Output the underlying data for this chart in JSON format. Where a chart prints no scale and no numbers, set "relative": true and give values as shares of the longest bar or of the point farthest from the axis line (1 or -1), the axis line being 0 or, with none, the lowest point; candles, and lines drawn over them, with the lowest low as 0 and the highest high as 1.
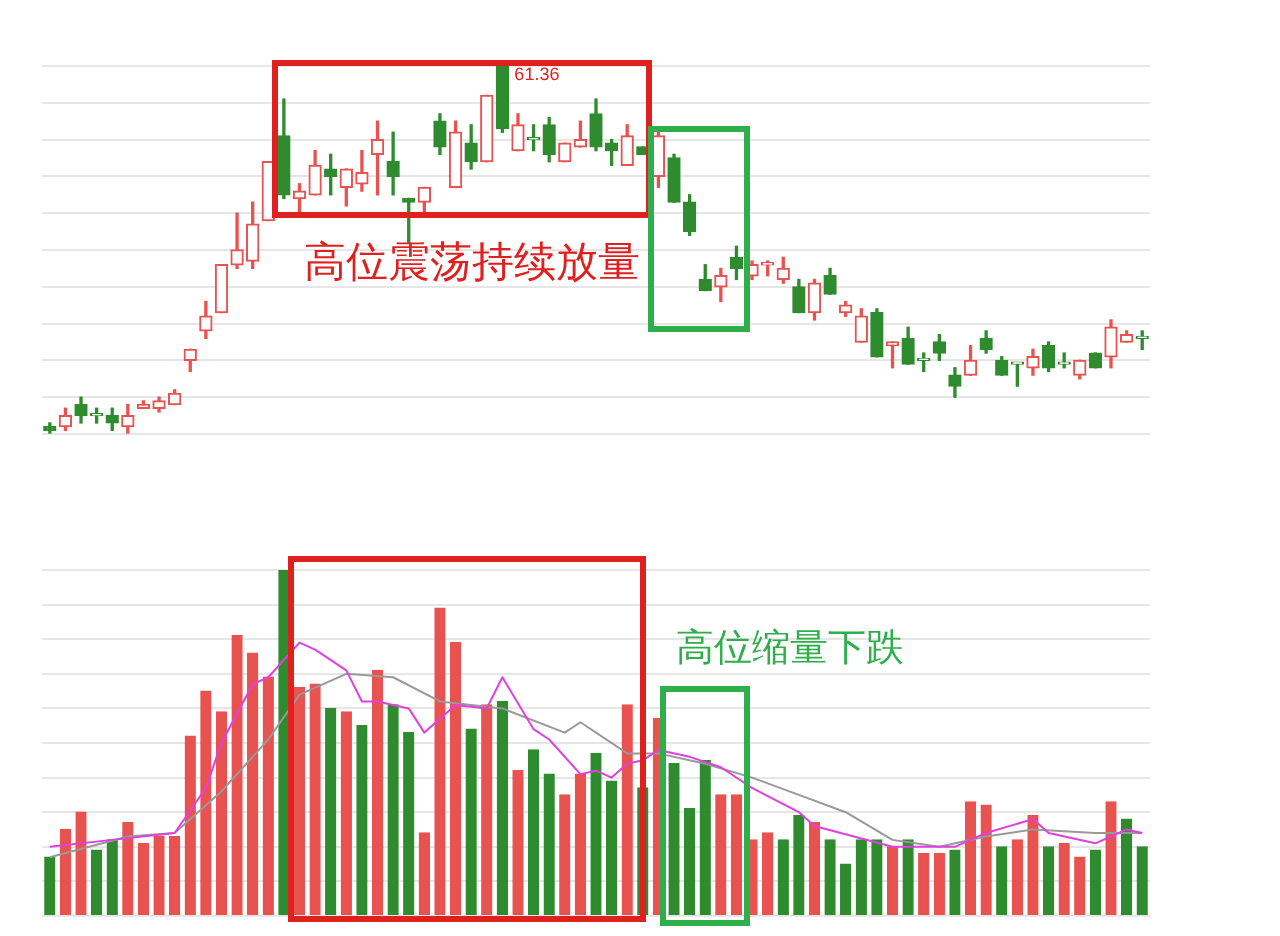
{
  "chart_data": [
    {
      "type": "candlestick",
      "relative": true,
      "grid": true,
      "categories": [
        null,
        null,
        null,
        null,
        null,
        null,
        null,
        null,
        null,
        null,
        null,
        null,
        null,
        null,
        null,
        null,
        null,
        null,
        null,
        null,
        null,
        null,
        null,
        null,
        null,
        null,
        null,
        null,
        null,
        null,
        null,
        null,
        null,
        null,
        null,
        null,
        null,
        null,
        null,
        null,
        null,
        null,
        null,
        null,
        null,
        null,
        null,
        null,
        null,
        null,
        null,
        null,
        null,
        null,
        null,
        null,
        null,
        null,
        null,
        null,
        null,
        null,
        null,
        null,
        null,
        null,
        null,
        null,
        null,
        null,
        null
      ],
      "ohlc": [
        [
          0.02,
          0.03,
          0,
          0.01
        ],
        [
          0.02,
          0.07,
          0.01,
          0.05
        ],
        [
          0.08,
          0.1,
          0.03,
          0.05
        ],
        [
          0.05,
          0.07,
          0.03,
          0.05
        ],
        [
          0.05,
          0.07,
          0.01,
          0.03
        ],
        [
          0.02,
          0.08,
          0,
          0.05
        ],
        [
          0.07,
          0.09,
          0.07,
          0.08
        ],
        [
          0.07,
          0.1,
          0.06,
          0.09
        ],
        [
          0.08,
          0.12,
          0.08,
          0.11
        ],
        [
          0.2,
          0.23,
          0.17,
          0.23
        ],
        [
          0.28,
          0.36,
          0.26,
          0.32
        ],
        [
          0.33,
          0.46,
          0.33,
          0.46
        ],
        [
          0.46,
          0.6,
          0.45,
          0.5
        ],
        [
          0.47,
          0.63,
          0.45,
          0.57
        ],
        [
          0.58,
          0.74,
          0.58,
          0.74
        ],
        [
          0.81,
          0.91,
          0.64,
          0.65
        ],
        [
          0.64,
          0.68,
          0.59,
          0.66
        ],
        [
          0.65,
          0.77,
          0.65,
          0.73
        ],
        [
          0.72,
          0.76,
          0.65,
          0.7
        ],
        [
          0.67,
          0.72,
          0.62,
          0.72
        ],
        [
          0.68,
          0.77,
          0.66,
          0.71
        ],
        [
          0.76,
          0.85,
          0.65,
          0.8
        ],
        [
          0.74,
          0.82,
          0.65,
          0.7
        ],
        [
          0.64,
          0.64,
          0.52,
          0.63
        ],
        [
          0.63,
          0.67,
          0.6,
          0.67
        ],
        [
          0.85,
          0.87,
          0.76,
          0.78
        ],
        [
          0.67,
          0.85,
          0.67,
          0.82
        ],
        [
          0.79,
          0.84,
          0.72,
          0.74
        ],
        [
          0.74,
          0.92,
          0.74,
          0.92
        ],
        [
          1,
          1,
          0.82,
          0.83
        ],
        [
          0.77,
          0.87,
          0.77,
          0.84
        ],
        [
          0.8,
          0.84,
          0.77,
          0.8
        ],
        [
          0.84,
          0.86,
          0.74,
          0.76
        ],
        [
          0.74,
          0.79,
          0.74,
          0.79
        ],
        [
          0.78,
          0.85,
          0.78,
          0.8
        ],
        [
          0.87,
          0.91,
          0.77,
          0.78
        ],
        [
          0.79,
          0.8,
          0.73,
          0.77
        ],
        [
          0.73,
          0.84,
          0.73,
          0.81
        ],
        [
          0.78,
          0.78,
          0.76,
          0.76
        ],
        [
          0.7,
          0.83,
          0.67,
          0.81
        ],
        [
          0.75,
          0.76,
          0.63,
          0.63
        ],
        [
          0.63,
          0.65,
          0.54,
          0.55
        ],
        [
          0.42,
          0.46,
          0.39,
          0.39
        ],
        [
          0.4,
          0.45,
          0.36,
          0.43
        ],
        [
          0.48,
          0.51,
          0.42,
          0.45
        ],
        [
          0.43,
          0.47,
          0.42,
          0.46
        ],
        [
          0.46,
          0.47,
          0.43,
          0.46
        ],
        [
          0.42,
          0.48,
          0.41,
          0.45
        ],
        [
          0.4,
          0.42,
          0.33,
          0.33
        ],
        [
          0.33,
          0.42,
          0.31,
          0.41
        ],
        [
          0.43,
          0.45,
          0.38,
          0.38
        ],
        [
          0.33,
          0.36,
          0.32,
          0.35
        ],
        [
          0.25,
          0.34,
          0.25,
          0.32
        ],
        [
          0.33,
          0.34,
          0.21,
          0.21
        ],
        [
          0.24,
          0.25,
          0.18,
          0.25
        ],
        [
          0.26,
          0.29,
          0.19,
          0.19
        ],
        [
          0.2,
          0.22,
          0.17,
          0.2
        ],
        [
          0.25,
          0.27,
          0.2,
          0.22
        ],
        [
          0.16,
          0.18,
          0.1,
          0.13
        ],
        [
          0.16,
          0.24,
          0.16,
          0.2
        ],
        [
          0.26,
          0.28,
          0.22,
          0.23
        ],
        [
          0.2,
          0.21,
          0.16,
          0.16
        ],
        [
          0.19,
          0.19,
          0.13,
          0.19
        ],
        [
          0.18,
          0.23,
          0.16,
          0.21
        ],
        [
          0.24,
          0.25,
          0.17,
          0.18
        ],
        [
          0.19,
          0.22,
          0.18,
          0.19
        ],
        [
          0.16,
          0.2,
          0.15,
          0.2
        ],
        [
          0.22,
          0.22,
          0.18,
          0.18
        ],
        [
          0.21,
          0.31,
          0.18,
          0.29
        ],
        [
          0.25,
          0.28,
          0.25,
          0.27
        ],
        [
          0.26,
          0.28,
          0.23,
          0.26
        ]
      ],
      "colors": [
        "#2e8b2e",
        "#e8524f",
        "#2e8b2e",
        "#2e8b2e",
        "#2e8b2e",
        "#e8524f",
        "#e8524f",
        "#e8524f",
        "#e8524f",
        "#e8524f",
        "#e8524f",
        "#e8524f",
        "#e8524f",
        "#e8524f",
        "#e8524f",
        "#2e8b2e",
        "#e8524f",
        "#e8524f",
        "#2e8b2e",
        "#e8524f",
        "#e8524f",
        "#e8524f",
        "#2e8b2e",
        "#2e8b2e",
        "#e8524f",
        "#2e8b2e",
        "#e8524f",
        "#2e8b2e",
        "#e8524f",
        "#2e8b2e",
        "#e8524f",
        "#2e8b2e",
        "#2e8b2e",
        "#e8524f",
        "#e8524f",
        "#2e8b2e",
        "#2e8b2e",
        "#e8524f",
        "#2e8b2e",
        "#e8524f",
        "#2e8b2e",
        "#2e8b2e",
        "#2e8b2e",
        "#e8524f",
        "#2e8b2e",
        "#e8524f",
        "#e8524f",
        "#e8524f",
        "#2e8b2e",
        "#e8524f",
        "#2e8b2e",
        "#e8524f",
        "#e8524f",
        "#2e8b2e",
        "#e8524f",
        "#2e8b2e",
        "#2e8b2e",
        "#2e8b2e",
        "#2e8b2e",
        "#e8524f",
        "#2e8b2e",
        "#2e8b2e",
        "#2e8b2e",
        "#e8524f",
        "#2e8b2e",
        "#2e8b2e",
        "#e8524f",
        "#2e8b2e",
        "#e8524f",
        "#e8524f",
        "#2e8b2e"
      ],
      "annotations": [
        "61.36",
        "高位震荡持续放量"
      ]
    },
    {
      "type": "bar",
      "relative": true,
      "grid": true,
      "categories": [
        null,
        null,
        null,
        null,
        null,
        null,
        null,
        null,
        null,
        null,
        null,
        null,
        null,
        null,
        null,
        null,
        null,
        null,
        null,
        null,
        null,
        null,
        null,
        null,
        null,
        null,
        null,
        null,
        null,
        null,
        null,
        null,
        null,
        null,
        null,
        null,
        null,
        null,
        null,
        null,
        null,
        null,
        null,
        null,
        null,
        null,
        null,
        null,
        null,
        null,
        null,
        null,
        null,
        null,
        null,
        null,
        null,
        null,
        null,
        null,
        null,
        null,
        null,
        null,
        null,
        null,
        null,
        null,
        null,
        null,
        null
      ],
      "series": [
        {
          "type": "bar",
          "colors": [
            "#2e8b2e",
            "#e8524f",
            "#e8524f",
            "#2e8b2e",
            "#2e8b2e",
            "#e8524f",
            "#e8524f",
            "#e8524f",
            "#e8524f",
            "#e8524f",
            "#e8524f",
            "#e8524f",
            "#e8524f",
            "#e8524f",
            "#e8524f",
            "#2e8b2e",
            "#e8524f",
            "#e8524f",
            "#2e8b2e",
            "#e8524f",
            "#2e8b2e",
            "#e8524f",
            "#2e8b2e",
            "#2e8b2e",
            "#e8524f",
            "#e8524f",
            "#e8524f",
            "#2e8b2e",
            "#e8524f",
            "#2e8b2e",
            "#e8524f",
            "#2e8b2e",
            "#2e8b2e",
            "#e8524f",
            "#e8524f",
            "#2e8b2e",
            "#2e8b2e",
            "#e8524f",
            "#2e8b2e",
            "#e8524f",
            "#2e8b2e",
            "#2e8b2e",
            "#2e8b2e",
            "#e8524f",
            "#e8524f",
            "#e8524f",
            "#e8524f",
            "#2e8b2e",
            "#2e8b2e",
            "#e8524f",
            "#2e8b2e",
            "#2e8b2e",
            "#2e8b2e",
            "#2e8b2e",
            "#e8524f",
            "#2e8b2e",
            "#e8524f",
            "#e8524f",
            "#2e8b2e",
            "#e8524f",
            "#e8524f",
            "#2e8b2e",
            "#e8524f",
            "#e8524f",
            "#2e8b2e",
            "#e8524f",
            "#e8524f",
            "#2e8b2e",
            "#e8524f",
            "#2e8b2e",
            "#2e8b2e"
          ],
          "values": [
            0.17,
            0.25,
            0.3,
            0.19,
            0.22,
            0.27,
            0.21,
            0.23,
            0.23,
            0.52,
            0.65,
            0.59,
            0.81,
            0.76,
            0.69,
            1,
            0.66,
            0.67,
            0.6,
            0.59,
            0.55,
            0.71,
            0.61,
            0.53,
            0.24,
            0.89,
            0.79,
            0.54,
            0.61,
            0.62,
            0.42,
            0.48,
            0.41,
            0.35,
            0.41,
            0.47,
            0.39,
            0.61,
            0.37,
            0.57,
            0.44,
            0.31,
            0.45,
            0.35,
            0.35,
            0.22,
            0.24,
            0.22,
            0.29,
            0.27,
            0.22,
            0.15,
            0.22,
            0.22,
            0.2,
            0.22,
            0.18,
            0.18,
            0.19,
            0.33,
            0.32,
            0.2,
            0.22,
            0.29,
            0.2,
            0.21,
            0.17,
            0.19,
            0.33,
            0.28,
            0.2
          ]
        },
        {
          "type": "line",
          "color": "#e040e0",
          "values": [
            0.2,
            null,
            null,
            null,
            0.22,
            null,
            null,
            null,
            0.24,
            null,
            0.37,
            0.5,
            null,
            0.67,
            0.69,
            null,
            0.79,
            0.77,
            null,
            0.71,
            0.62,
            0.62,
            null,
            0.6,
            0.53,
            null,
            0.61,
            null,
            0.6,
            0.69,
            null,
            0.54,
            0.51,
            null,
            0.41,
            0.42,
            0.4,
            0.44,
            0.45,
            0.48,
            null,
            0.46,
            null,
            0.43,
            null,
            0.37,
            null,
            null,
            0.3,
            0.26,
            null,
            null,
            null,
            null,
            0.2,
            null,
            null,
            null,
            0.2,
            null,
            0.24,
            null,
            null,
            0.28,
            0.24,
            null,
            null,
            0.21,
            null,
            0.25,
            0.24
          ]
        },
        {
          "type": "line",
          "color": "#999999",
          "values": [
            0.17,
            null,
            null,
            null,
            null,
            0.23,
            null,
            null,
            0.24,
            null,
            null,
            0.36,
            null,
            null,
            0.51,
            null,
            0.64,
            null,
            null,
            0.7,
            null,
            null,
            0.69,
            null,
            null,
            0.62,
            null,
            null,
            null,
            0.6,
            null,
            null,
            null,
            0.53,
            0.56,
            null,
            null,
            0.47,
            null,
            0.47,
            null,
            null,
            0.44,
            null,
            null,
            0.4,
            null,
            null,
            0.35,
            null,
            null,
            0.3,
            null,
            null,
            0.22,
            null,
            null,
            0.2,
            null,
            null,
            0.23,
            null,
            null,
            0.25,
            null,
            null,
            null,
            0.24,
            null,
            null,
            0.24
          ]
        }
      ],
      "annotations": [
        "高位缩量下跌"
      ]
    }
  ]
}
